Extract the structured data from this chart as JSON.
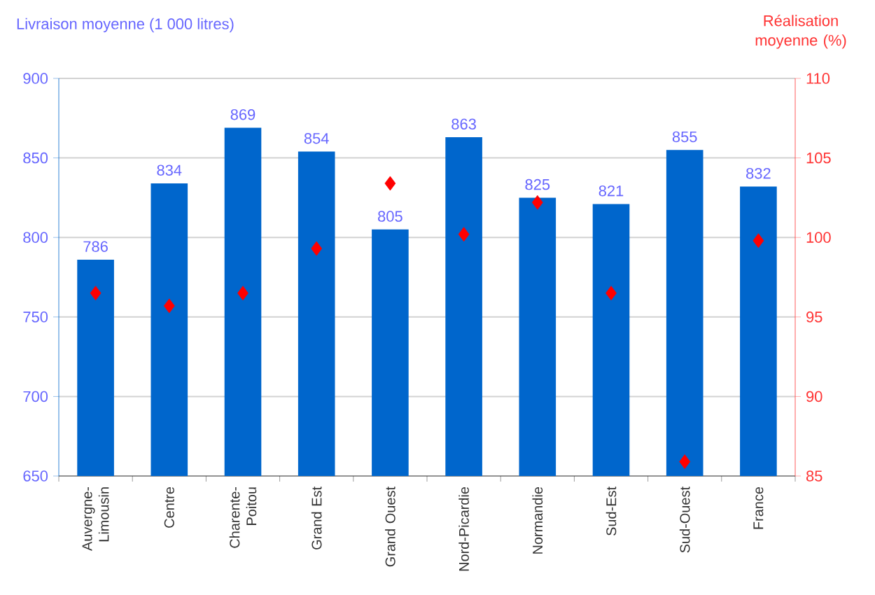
{
  "chart_data": {
    "type": "bar",
    "ylabel": "Livraison moyenne (1 000 litres)",
    "y2label": "Réalisation moyenne (%)",
    "categories": [
      "Auvergne-Limousin",
      "Centre",
      "Charente-Poitou",
      "Grand Est",
      "Grand Ouest",
      "Nord-Picardie",
      "Normandie",
      "Sud-Est",
      "Sud-Ouest",
      "France"
    ],
    "series": [
      {
        "color": "#0066cc",
        "values": [
          786,
          834,
          869,
          854,
          805,
          863,
          825,
          821,
          855,
          832
        ],
        "value_labels": [
          "786",
          "834",
          "869",
          "854",
          "805",
          "863",
          "825",
          "821",
          "855",
          "832"
        ]
      },
      {
        "type": "scatter",
        "axis": "y2",
        "marker": "diamond",
        "color": "#ff0000",
        "values": [
          96.5,
          95.7,
          96.5,
          99.3,
          103.4,
          100.2,
          102.2,
          96.5,
          85.9,
          99.8
        ]
      }
    ],
    "ylim": [
      650,
      900
    ],
    "yticks": [
      650,
      700,
      750,
      800,
      850,
      900
    ],
    "y2lim": [
      85,
      110
    ],
    "y2ticks": [
      85,
      90,
      95,
      100,
      105,
      110
    ],
    "grid": "y"
  }
}
